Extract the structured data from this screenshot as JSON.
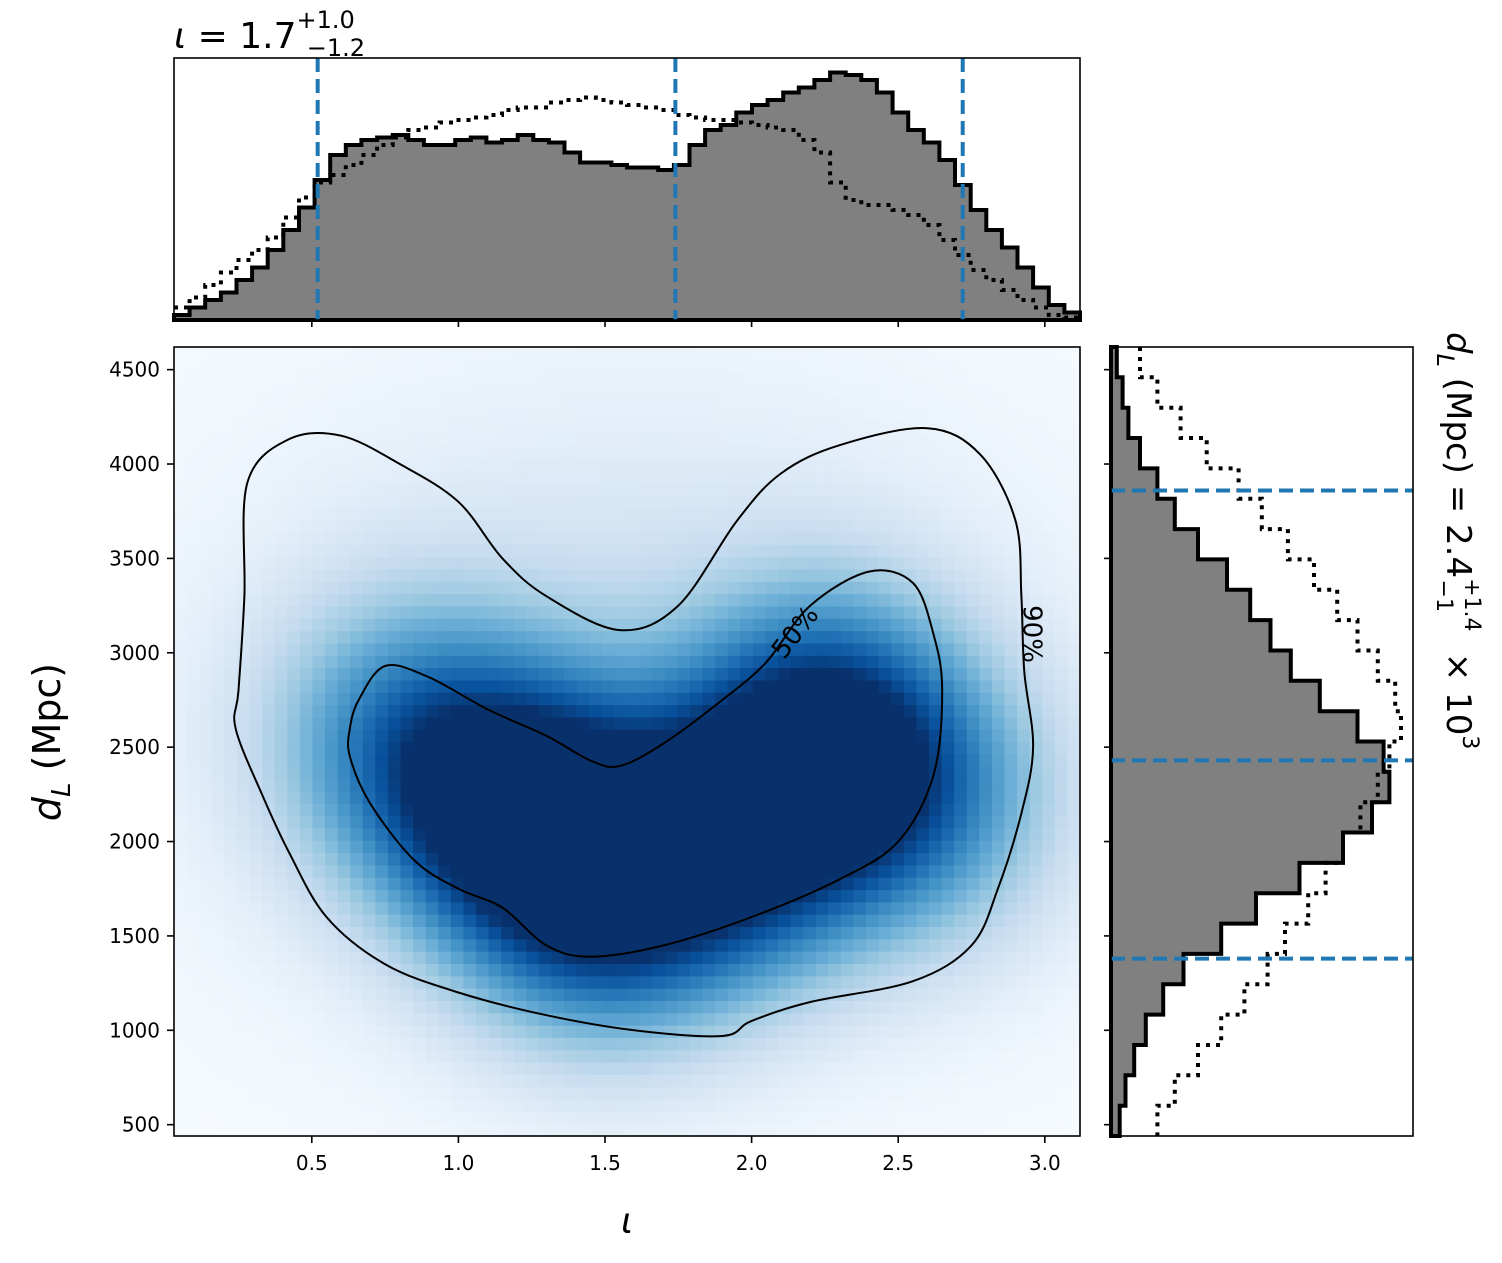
{
  "chart_data": {
    "type": "heatmap",
    "description_of_panels": [
      "top marginal histogram of iota",
      "main 2D density with credible contours",
      "right marginal histogram of d_L"
    ],
    "top_title": {
      "symbol": "ι",
      "eq": " = 1.7",
      "sup": "+1.0",
      "sub": "−1.2"
    },
    "xlabel": "ι",
    "ylabel": {
      "main": "d",
      "sub": "L",
      "unit": " (Mpc)"
    },
    "right_title": {
      "prefix": "d",
      "sub": "L",
      "rest": " (Mpc) = 2.4",
      "sup": "+1.4",
      "sub2": "−1",
      "tail": " × 10",
      "exp": "3"
    },
    "x_range": [
      0.03,
      3.12
    ],
    "y_range": [
      440,
      4620
    ],
    "x_ticks": [
      0.5,
      1.0,
      1.5,
      2.0,
      2.5,
      3.0
    ],
    "x_tick_labels": [
      "0.5",
      "1.0",
      "1.5",
      "2.0",
      "2.5",
      "3.0"
    ],
    "y_ticks": [
      500,
      1000,
      1500,
      2000,
      2500,
      3000,
      3500,
      4000,
      4500
    ],
    "y_tick_labels": [
      "500",
      "1000",
      "1500",
      "2000",
      "2500",
      "3000",
      "3500",
      "4000",
      "4500"
    ],
    "contour_labels": [
      "50%",
      "90%"
    ],
    "colormap": "Blues",
    "density_peaks": [
      {
        "x": 1.2,
        "y": 2180,
        "amp": 1.0
      },
      {
        "x": 1.5,
        "y": 1700,
        "amp": 0.85
      },
      {
        "x": 2.25,
        "y": 2550,
        "amp": 0.95
      },
      {
        "x": 1.95,
        "y": 2000,
        "amp": 0.8
      },
      {
        "x": 0.8,
        "y": 2550,
        "amp": 0.55
      },
      {
        "x": 2.6,
        "y": 2200,
        "amp": 0.5
      }
    ],
    "contour_50": [
      [
        0.63,
        2600
      ],
      [
        0.66,
        2750
      ],
      [
        0.75,
        2930
      ],
      [
        0.9,
        2870
      ],
      [
        1.1,
        2700
      ],
      [
        1.3,
        2560
      ],
      [
        1.45,
        2430
      ],
      [
        1.55,
        2400
      ],
      [
        1.7,
        2520
      ],
      [
        1.9,
        2750
      ],
      [
        2.05,
        2950
      ],
      [
        2.2,
        3250
      ],
      [
        2.4,
        3430
      ],
      [
        2.55,
        3370
      ],
      [
        2.62,
        3100
      ],
      [
        2.65,
        2800
      ],
      [
        2.62,
        2350
      ],
      [
        2.5,
        2000
      ],
      [
        2.3,
        1800
      ],
      [
        2.0,
        1600
      ],
      [
        1.7,
        1450
      ],
      [
        1.45,
        1390
      ],
      [
        1.3,
        1450
      ],
      [
        1.15,
        1650
      ],
      [
        1.0,
        1750
      ],
      [
        0.85,
        1900
      ],
      [
        0.7,
        2200
      ],
      [
        0.63,
        2450
      ]
    ],
    "contour_90": [
      [
        0.25,
        2800
      ],
      [
        0.27,
        3300
      ],
      [
        0.28,
        3900
      ],
      [
        0.42,
        4130
      ],
      [
        0.6,
        4150
      ],
      [
        0.8,
        4000
      ],
      [
        1.0,
        3800
      ],
      [
        1.15,
        3500
      ],
      [
        1.3,
        3300
      ],
      [
        1.55,
        3120
      ],
      [
        1.75,
        3250
      ],
      [
        1.95,
        3700
      ],
      [
        2.1,
        3950
      ],
      [
        2.3,
        4100
      ],
      [
        2.6,
        4190
      ],
      [
        2.78,
        4050
      ],
      [
        2.9,
        3700
      ],
      [
        2.92,
        3300
      ],
      [
        2.93,
        2900
      ],
      [
        2.96,
        2500
      ],
      [
        2.92,
        2150
      ],
      [
        2.84,
        1750
      ],
      [
        2.75,
        1450
      ],
      [
        2.55,
        1260
      ],
      [
        2.2,
        1150
      ],
      [
        2.0,
        1050
      ],
      [
        1.9,
        970
      ],
      [
        1.6,
        1000
      ],
      [
        1.3,
        1080
      ],
      [
        1.0,
        1200
      ],
      [
        0.75,
        1350
      ],
      [
        0.55,
        1600
      ],
      [
        0.42,
        1950
      ],
      [
        0.33,
        2250
      ],
      [
        0.24,
        2600
      ]
    ],
    "top_histogram": {
      "quantile_lines": [
        0.52,
        1.74,
        2.72
      ],
      "solid": [
        0.02,
        0.05,
        0.08,
        0.11,
        0.16,
        0.21,
        0.28,
        0.36,
        0.45,
        0.56,
        0.66,
        0.7,
        0.72,
        0.73,
        0.74,
        0.72,
        0.7,
        0.7,
        0.72,
        0.73,
        0.71,
        0.72,
        0.74,
        0.72,
        0.71,
        0.67,
        0.63,
        0.63,
        0.62,
        0.61,
        0.61,
        0.6,
        0.62,
        0.7,
        0.76,
        0.78,
        0.83,
        0.86,
        0.88,
        0.91,
        0.93,
        0.96,
        0.99,
        0.98,
        0.96,
        0.91,
        0.83,
        0.76,
        0.71,
        0.64,
        0.54,
        0.44,
        0.36,
        0.29,
        0.21,
        0.13,
        0.06,
        0.03
      ],
      "dotted": [
        0.05,
        0.09,
        0.14,
        0.19,
        0.24,
        0.28,
        0.33,
        0.41,
        0.49,
        0.55,
        0.58,
        0.62,
        0.66,
        0.7,
        0.73,
        0.76,
        0.77,
        0.79,
        0.8,
        0.81,
        0.82,
        0.84,
        0.85,
        0.85,
        0.87,
        0.88,
        0.89,
        0.88,
        0.87,
        0.86,
        0.85,
        0.84,
        0.82,
        0.81,
        0.8,
        0.8,
        0.79,
        0.78,
        0.77,
        0.76,
        0.72,
        0.67,
        0.55,
        0.48,
        0.46,
        0.46,
        0.44,
        0.42,
        0.38,
        0.32,
        0.26,
        0.2,
        0.16,
        0.12,
        0.08,
        0.05,
        0.02,
        0.01
      ]
    },
    "right_histogram": {
      "quantile_lines": [
        3860,
        2430,
        1380
      ],
      "solid": [
        0.02,
        0.04,
        0.06,
        0.1,
        0.16,
        0.22,
        0.3,
        0.4,
        0.48,
        0.55,
        0.62,
        0.72,
        0.85,
        0.94,
        0.96,
        0.9,
        0.8,
        0.65,
        0.5,
        0.38,
        0.25,
        0.18,
        0.12,
        0.08,
        0.05,
        0.03
      ],
      "dotted": [
        0.1,
        0.16,
        0.24,
        0.33,
        0.44,
        0.52,
        0.61,
        0.7,
        0.78,
        0.85,
        0.92,
        0.98,
        1.0,
        0.96,
        0.92,
        0.86,
        0.8,
        0.74,
        0.68,
        0.6,
        0.54,
        0.46,
        0.38,
        0.3,
        0.22,
        0.16
      ]
    }
  }
}
